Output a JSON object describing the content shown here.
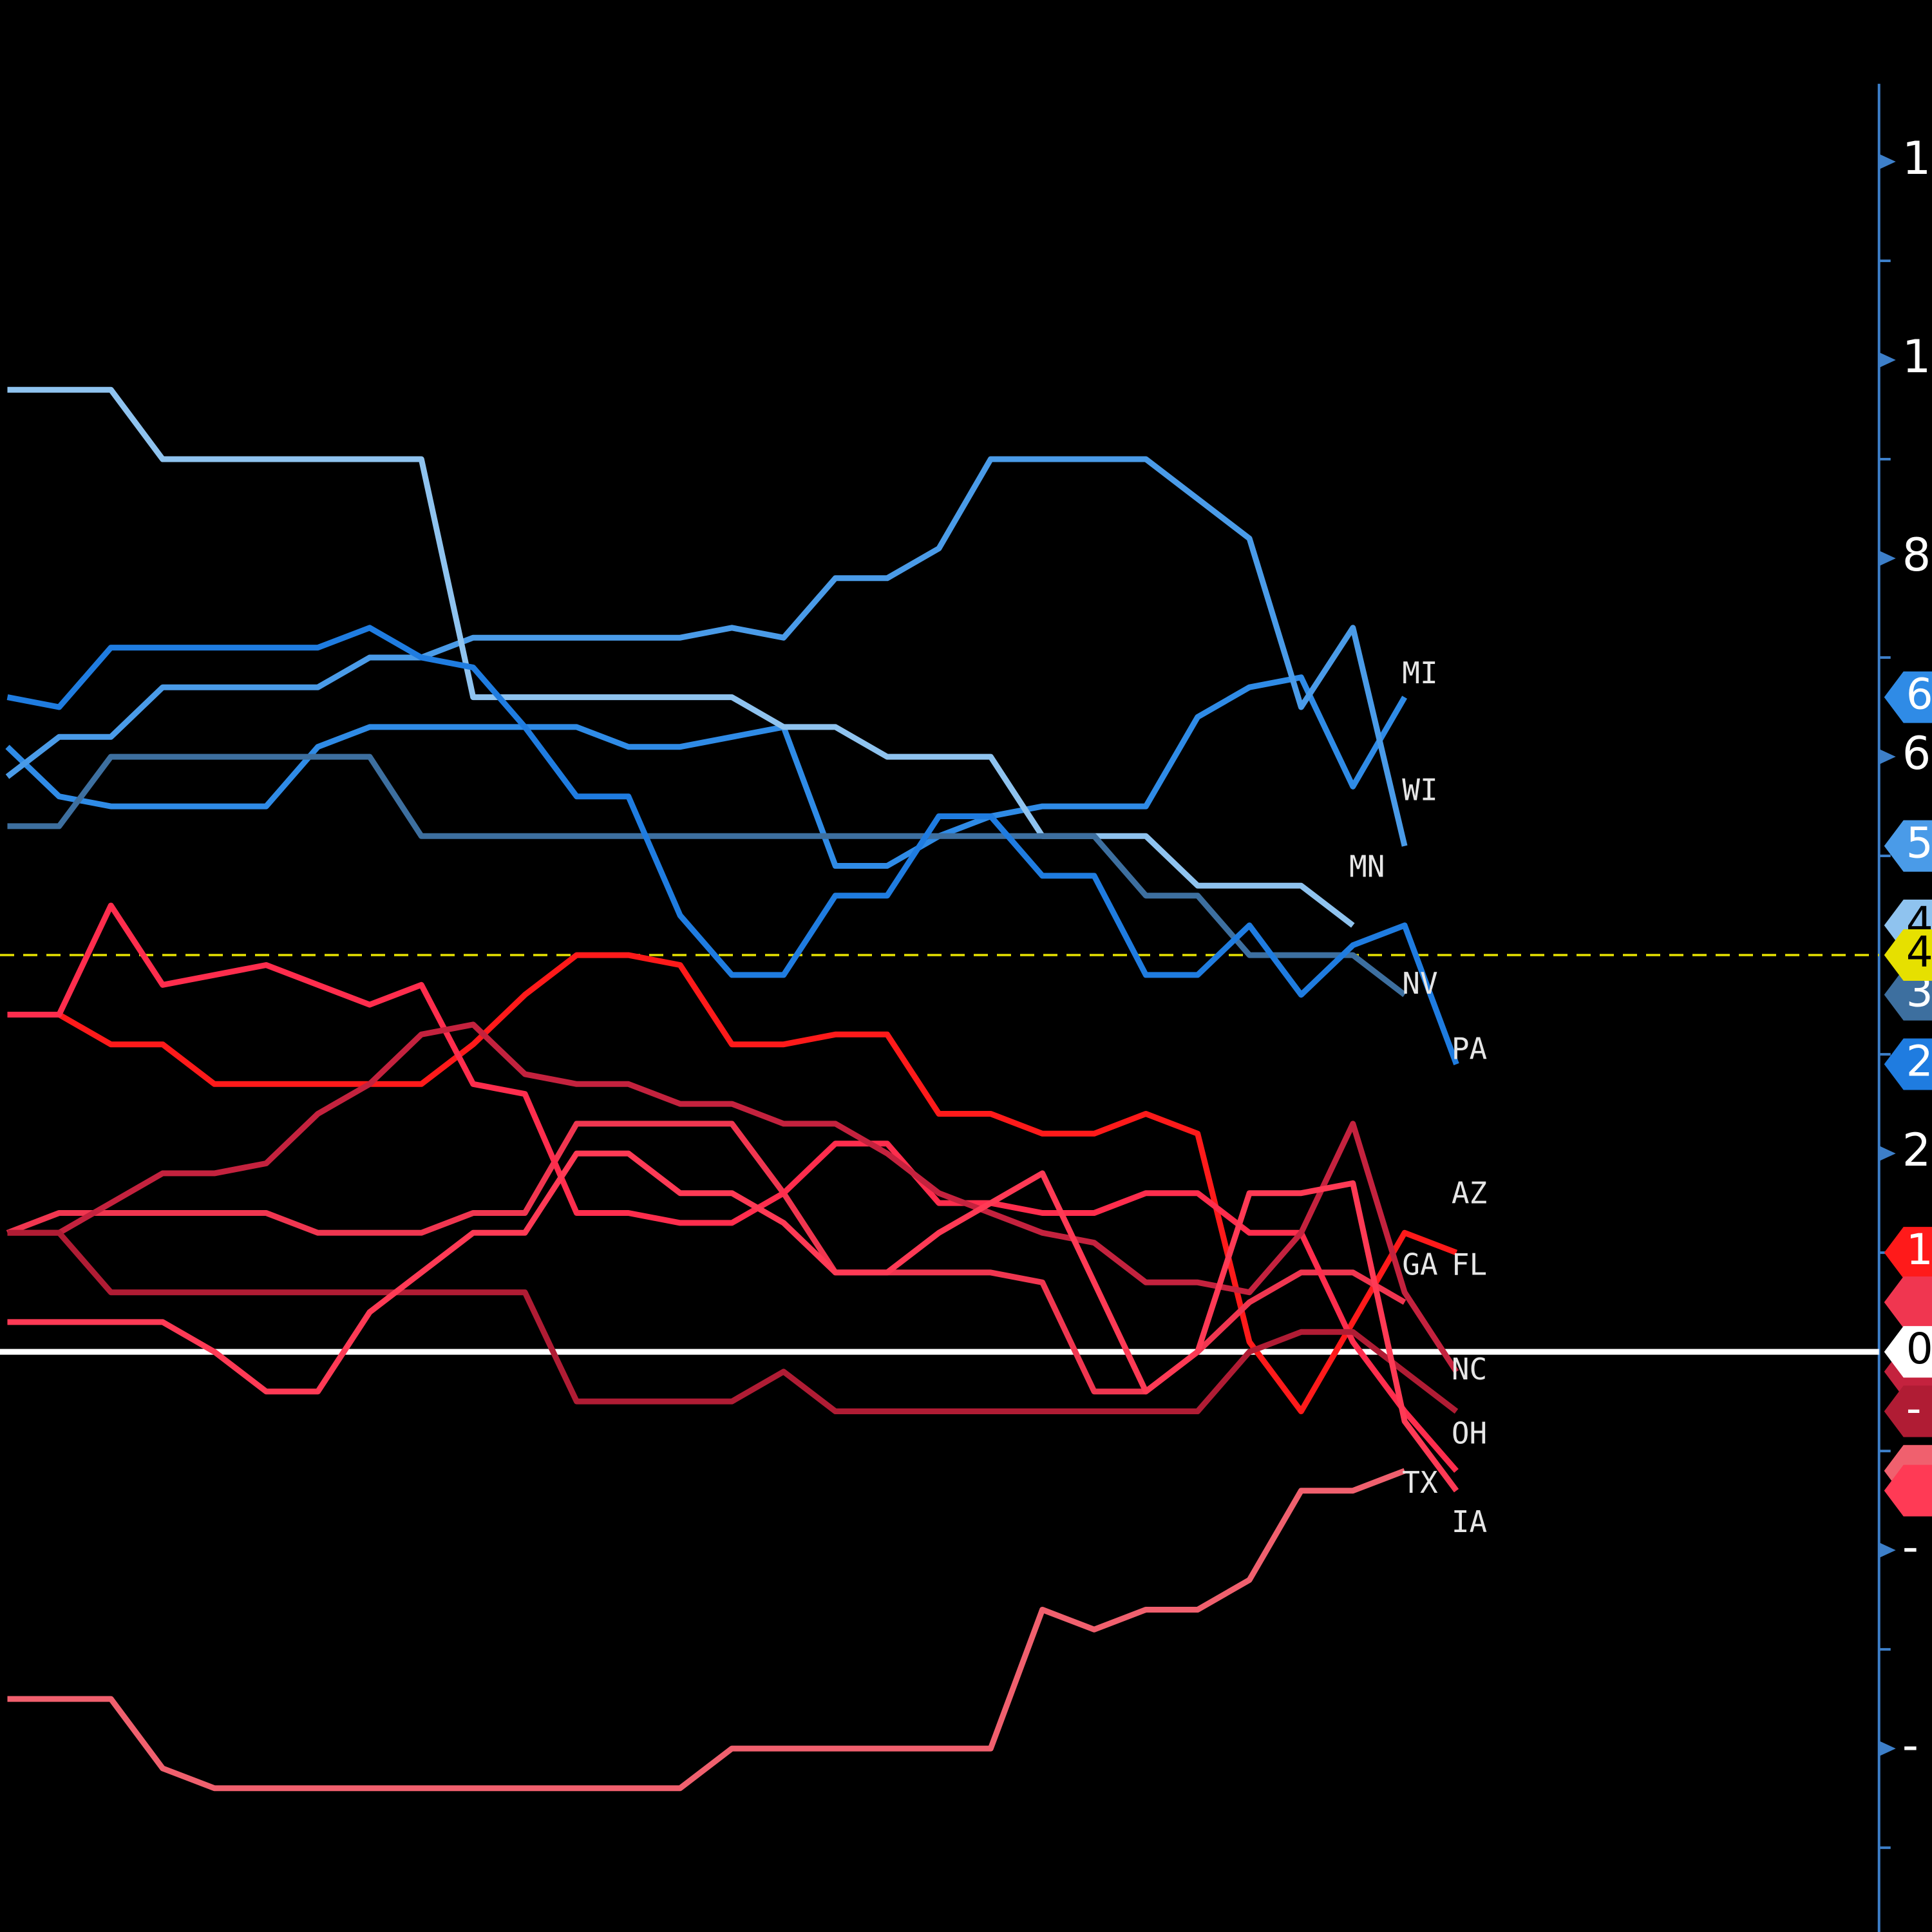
{
  "chart_data": {
    "type": "line",
    "categories": [
      null,
      null,
      null,
      null,
      null,
      null,
      null,
      null,
      null,
      null,
      null,
      null,
      null,
      null,
      null,
      null,
      null,
      null,
      null,
      null,
      null,
      null,
      null,
      null,
      null,
      null,
      null,
      null,
      null
    ],
    "ylim": [
      -5.85,
      13.63
    ],
    "yticks": [
      {
        "value": 12,
        "label": "1"
      },
      {
        "value": 10,
        "label": "1"
      },
      8,
      6,
      2,
      {
        "value": -2,
        "label": "-"
      },
      {
        "value": -4,
        "label": "-"
      }
    ],
    "minor_yticks": [
      11,
      9,
      7,
      5,
      3,
      1,
      -1,
      -3,
      -5
    ],
    "axis_color": "#3d7fc9",
    "grid": false,
    "reference_lines": [
      {
        "value": 4.0,
        "color": "#e6e000",
        "style": "dashed",
        "label": "4"
      },
      {
        "value": 0,
        "color": "#ffffff",
        "style": "solid",
        "label": "0"
      }
    ],
    "series": [
      {
        "name": "MI",
        "color": "#2f8be6",
        "tag": "6",
        "values": [
          6.1,
          5.6,
          5.5,
          5.5,
          5.5,
          5.5,
          6.1,
          6.3,
          6.3,
          6.3,
          6.3,
          6.3,
          6.1,
          6.1,
          6.2,
          6.3,
          4.9,
          4.9,
          5.2,
          5.4,
          5.5,
          5.5,
          5.5,
          6.4,
          6.7,
          6.8,
          5.7,
          6.6,
          null
        ]
      },
      {
        "name": "WI",
        "color": "#4a9be8",
        "tag": "5",
        "values": [
          5.8,
          6.2,
          6.2,
          6.7,
          6.7,
          6.7,
          6.7,
          7.0,
          7.0,
          7.2,
          7.2,
          7.2,
          7.2,
          7.2,
          7.3,
          7.2,
          7.8,
          7.8,
          8.1,
          9.0,
          9.0,
          9.0,
          9.0,
          8.6,
          8.2,
          6.5,
          7.3,
          5.1,
          null
        ]
      },
      {
        "name": "MN",
        "color": "#8fc3ef",
        "tag": "4",
        "values": [
          9.7,
          9.7,
          9.7,
          9.0,
          9.0,
          9.0,
          9.0,
          9.0,
          9.0,
          6.6,
          6.6,
          6.6,
          6.6,
          6.6,
          6.6,
          6.3,
          6.3,
          6.0,
          6.0,
          6.0,
          5.2,
          5.2,
          5.2,
          4.7,
          4.7,
          4.7,
          4.3,
          null,
          null
        ]
      },
      {
        "name": "NV",
        "color": "#3d6f9f",
        "tag": "3",
        "values": [
          5.3,
          5.3,
          6.0,
          6.0,
          6.0,
          6.0,
          6.0,
          6.0,
          5.2,
          5.2,
          5.2,
          5.2,
          5.2,
          5.2,
          5.2,
          5.2,
          5.2,
          5.2,
          5.2,
          5.2,
          5.2,
          5.2,
          4.6,
          4.6,
          4.0,
          4.0,
          4.0,
          3.6,
          null
        ]
      },
      {
        "name": "PA",
        "color": "#1f7ce0",
        "tag": "2",
        "values": [
          6.6,
          6.5,
          7.1,
          7.1,
          7.1,
          7.1,
          7.1,
          7.3,
          7.0,
          6.9,
          6.3,
          5.6,
          5.6,
          4.4,
          3.8,
          3.8,
          4.6,
          4.6,
          5.4,
          5.4,
          4.8,
          4.8,
          3.8,
          3.8,
          4.3,
          3.6,
          4.1,
          4.3,
          2.9
        ]
      },
      {
        "name": "AZ",
        "color": "#ff1a1a",
        "tag": "1",
        "values": [
          3.4,
          3.4,
          3.1,
          3.1,
          2.7,
          2.7,
          2.7,
          2.7,
          2.7,
          3.1,
          3.6,
          4.0,
          4.0,
          3.9,
          3.1,
          3.1,
          3.2,
          3.2,
          2.4,
          2.4,
          2.2,
          2.2,
          2.4,
          2.2,
          0.1,
          -0.6,
          0.3,
          1.2,
          1.0
        ]
      },
      {
        "name": "GA",
        "color": "#f03650",
        "values": [
          1.2,
          1.4,
          1.4,
          1.4,
          1.4,
          1.4,
          1.2,
          1.2,
          1.2,
          1.4,
          1.4,
          2.3,
          2.3,
          2.3,
          2.3,
          1.6,
          0.8,
          0.8,
          0.8,
          0.8,
          0.7,
          -0.4,
          -0.4,
          0.0,
          0.5,
          0.8,
          0.8,
          0.5,
          null
        ]
      },
      {
        "name": "FL",
        "color": "#ff2d4d",
        "values": [
          3.4,
          3.4,
          4.5,
          3.7,
          3.8,
          3.9,
          3.7,
          3.5,
          3.7,
          2.7,
          2.6,
          1.4,
          1.4,
          1.3,
          1.3,
          1.6,
          2.1,
          2.1,
          1.5,
          1.5,
          1.4,
          1.4,
          1.6,
          1.6,
          1.2,
          1.2,
          0.1,
          -0.6,
          -1.2
        ]
      },
      {
        "name": "NC",
        "color": "#c4223e",
        "values": [
          1.2,
          1.2,
          1.5,
          1.8,
          1.8,
          1.9,
          2.4,
          2.7,
          3.2,
          3.3,
          2.8,
          2.7,
          2.7,
          2.5,
          2.5,
          2.3,
          2.3,
          2.0,
          1.6,
          1.4,
          1.2,
          1.1,
          0.7,
          0.7,
          0.6,
          1.2,
          2.3,
          0.6,
          -0.2
        ]
      },
      {
        "name": "OH",
        "color": "#b01c34",
        "tag": "-",
        "values": [
          1.2,
          1.2,
          0.6,
          0.6,
          0.6,
          0.6,
          0.6,
          0.6,
          0.6,
          0.6,
          0.6,
          -0.5,
          -0.5,
          -0.5,
          -0.5,
          -0.2,
          -0.6,
          -0.6,
          -0.6,
          -0.6,
          -0.6,
          -0.6,
          -0.6,
          -0.6,
          0.0,
          0.2,
          0.2,
          -0.2,
          -0.6
        ]
      },
      {
        "name": "TX",
        "color": "#f0606e",
        "tag": "-",
        "values": [
          -3.5,
          -3.5,
          -3.5,
          -4.2,
          -4.4,
          -4.4,
          -4.4,
          -4.4,
          -4.4,
          -4.4,
          -4.4,
          -4.4,
          -4.4,
          -4.4,
          -4.0,
          -4.0,
          -4.0,
          -4.0,
          -4.0,
          -4.0,
          -2.6,
          -2.8,
          -2.6,
          -2.6,
          -2.3,
          -1.4,
          -1.4,
          -1.2,
          null
        ]
      },
      {
        "name": "IA",
        "color": "#ff3a55",
        "values": [
          0.3,
          0.3,
          0.3,
          0.3,
          0.0,
          -0.4,
          -0.4,
          0.4,
          0.8,
          1.2,
          1.2,
          2.0,
          2.0,
          1.6,
          1.6,
          1.3,
          0.8,
          0.8,
          1.2,
          1.5,
          1.8,
          0.7,
          -0.4,
          0.0,
          1.6,
          1.6,
          1.7,
          -0.7,
          -1.4
        ]
      }
    ]
  }
}
